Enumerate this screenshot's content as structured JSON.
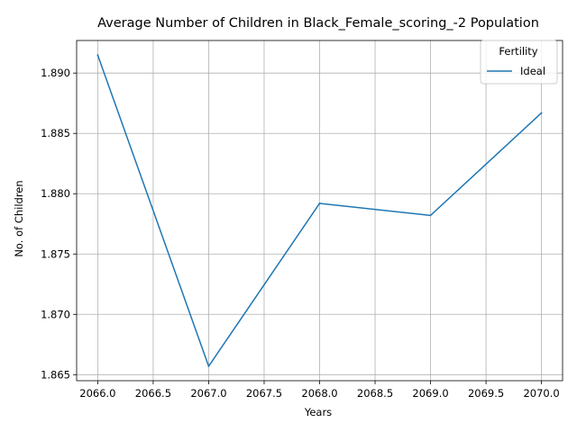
{
  "chart_data": {
    "type": "line",
    "title": "Average Number of Children in Black_Female_scoring_-2 Population",
    "xlabel": "Years",
    "ylabel": "No. of Children",
    "xlim": [
      2065.81,
      2070.19
    ],
    "ylim": [
      1.8645,
      1.8927
    ],
    "x_ticks": [
      "2066.0",
      "2066.5",
      "2067.0",
      "2067.5",
      "2068.0",
      "2068.5",
      "2069.0",
      "2069.5",
      "2070.0"
    ],
    "y_ticks": [
      "1.865",
      "1.870",
      "1.875",
      "1.880",
      "1.885",
      "1.890"
    ],
    "grid": true,
    "legend": {
      "title": "Fertility",
      "placement": "top-right"
    },
    "series": [
      {
        "name": "Ideal",
        "color": "#1f77b4",
        "x": [
          2066,
          2067,
          2068,
          2069,
          2070
        ],
        "values": [
          1.8915,
          1.8657,
          1.8792,
          1.8782,
          1.8867
        ]
      }
    ]
  }
}
